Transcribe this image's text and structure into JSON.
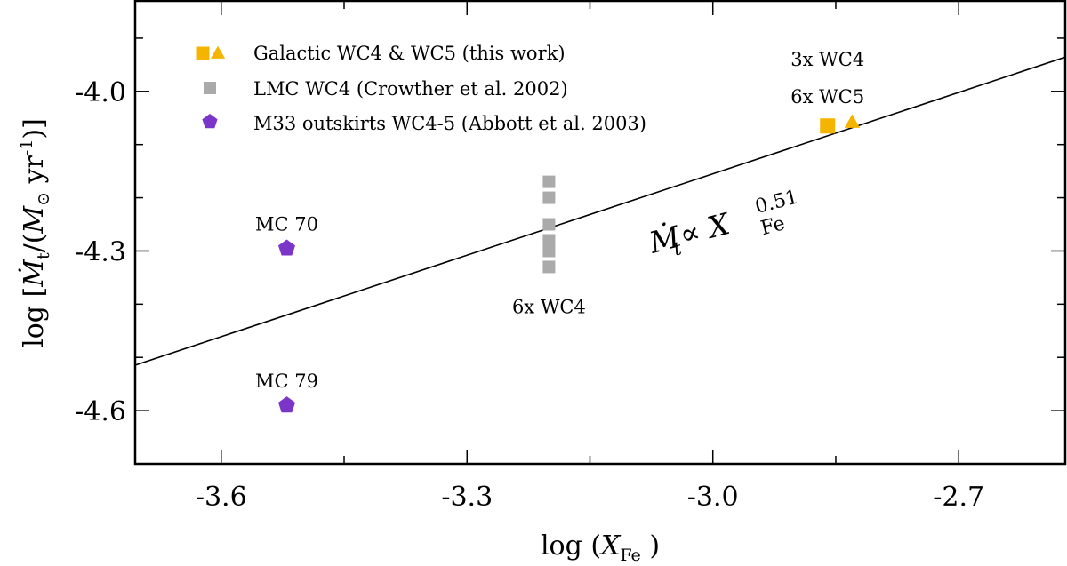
{
  "chart_data": {
    "type": "scatter",
    "xlabel": "log (X_Fe)",
    "ylabel": "log [Ṁ_t/(M_⊙ yr^-1)]",
    "xlim": [
      -3.705,
      -2.57
    ],
    "ylim": [
      -4.7,
      -3.83
    ],
    "xticks": [
      -3.6,
      -3.3,
      -3.0,
      -2.7
    ],
    "xtick_labels": [
      "-3.6",
      "-3.3",
      "-3.0",
      "-2.7"
    ],
    "xminor": [
      -3.45,
      -3.15,
      -2.85
    ],
    "yticks": [
      -4.0,
      -4.3,
      -4.6
    ],
    "ytick_labels": [
      "-4.0",
      "-4.3",
      "-4.6"
    ],
    "yminor": [
      -3.9,
      -4.1,
      -4.2,
      -4.4,
      -4.5
    ],
    "series": [
      {
        "name": "Galactic WC4 & WC5 (this work)",
        "marker": "square",
        "color": "#f5b400",
        "points": [
          {
            "x": -2.86,
            "y": -4.065
          }
        ]
      },
      {
        "name": "Galactic WC4 & WC5 (this work)",
        "marker": "triangle",
        "color": "#f5b400",
        "points": [
          {
            "x": -2.83,
            "y": -4.058
          }
        ]
      },
      {
        "name": "LMC WC4 (Crowther et al. 2002)",
        "marker": "square",
        "color": "#aaaaaa",
        "points": [
          {
            "x": -3.2,
            "y": -4.17
          },
          {
            "x": -3.2,
            "y": -4.2
          },
          {
            "x": -3.2,
            "y": -4.25
          },
          {
            "x": -3.2,
            "y": -4.28
          },
          {
            "x": -3.2,
            "y": -4.3
          },
          {
            "x": -3.2,
            "y": -4.33
          }
        ]
      },
      {
        "name": "M33 outskirts WC4-5 (Abbott et al. 2003)",
        "marker": "pentagon",
        "color": "#7b35c8",
        "points": [
          {
            "x": -3.52,
            "y": -4.295
          },
          {
            "x": -3.52,
            "y": -4.59
          }
        ]
      }
    ],
    "fit_line": {
      "label": "Ṁt ∝ X_Fe^0.51",
      "label_main": "Ṁ",
      "label_sub": "t",
      "label_mid": " ∝ X",
      "label_sup": "0.51",
      "label_sub2": "Fe",
      "slope": 0.51,
      "intercept": -2.625
    },
    "legend": {
      "placement": "top-left",
      "entries": [
        {
          "label": "Galactic WC4 & WC5 (this work)",
          "markers": [
            "square",
            "triangle"
          ],
          "color": "#f5b400"
        },
        {
          "label": "LMC WC4 (Crowther et al. 2002)",
          "markers": [
            "square"
          ],
          "color": "#aaaaaa"
        },
        {
          "label": "M33 outskirts WC4-5 (Abbott et al. 2003)",
          "markers": [
            "pentagon"
          ],
          "color": "#7b35c8"
        }
      ]
    },
    "annotations": [
      {
        "text": "3x WC4",
        "x": -2.86,
        "y": -3.94
      },
      {
        "text": "6x WC5",
        "x": -2.86,
        "y": -4.01
      },
      {
        "text": "6x WC4",
        "x": -3.2,
        "y": -4.405
      },
      {
        "text": "MC 70",
        "x": -3.52,
        "y": -4.25
      },
      {
        "text": "MC 79",
        "x": -3.52,
        "y": -4.545
      }
    ]
  }
}
